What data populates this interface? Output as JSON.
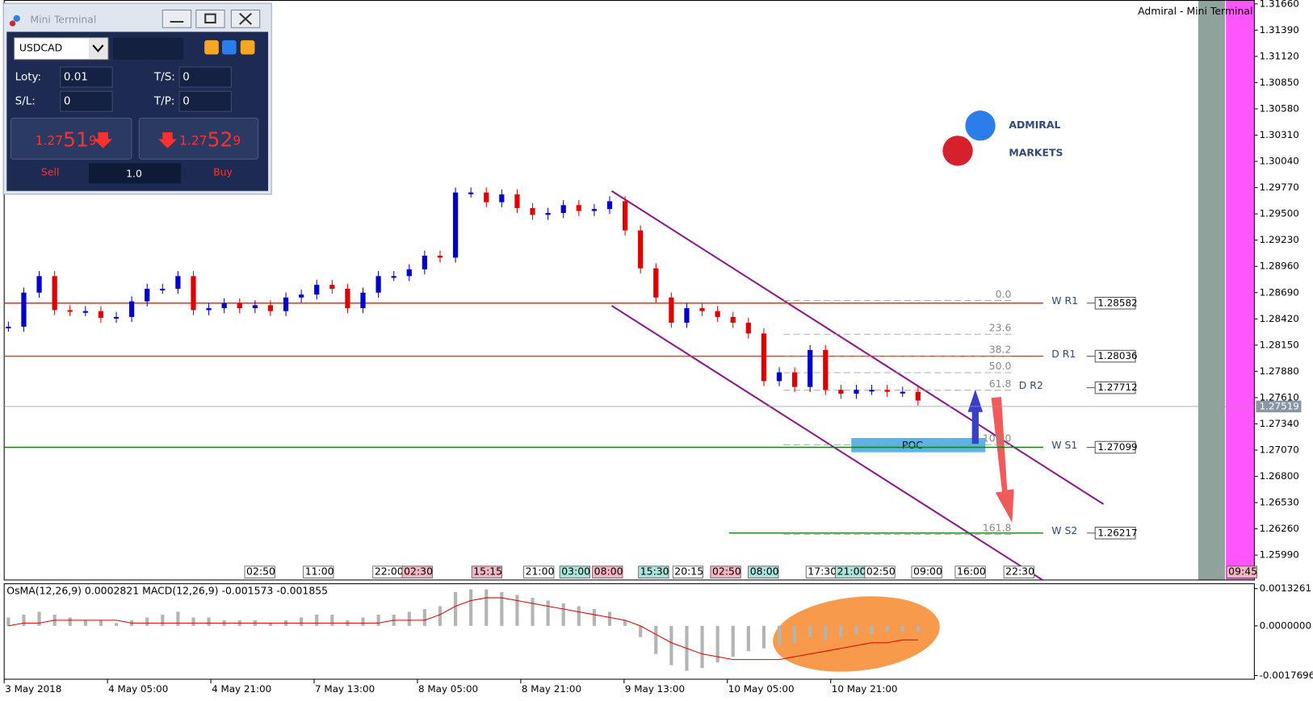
{
  "header": "Admiral - Mini Terminal",
  "logo": [
    "ADMIRAL",
    "MARKETS"
  ],
  "window": {
    "title": "Mini Terminal",
    "symbol": "USDCAD",
    "lots_label": "Loty:",
    "lots": "0.01",
    "ts_label": "T/S:",
    "ts": "0",
    "sl_label": "S/L:",
    "sl": "0",
    "tp_label": "T/P:",
    "tp": "0",
    "sell_price": {
      "big": "1.27",
      "pips": "51",
      "fraction": "9"
    },
    "buy_price": {
      "big": "1.27",
      "pips": "52",
      "fraction": "9"
    },
    "sell": "Sell",
    "volume": "1.0",
    "buy": "Buy"
  },
  "chart_data": [
    {
      "type": "candlestick",
      "x_labels": [
        "3 May 2018",
        "4 May 05:00",
        "4 May 21:00",
        "7 May 13:00",
        "8 May 05:00",
        "8 May 21:00",
        "9 May 13:00",
        "10 May 05:00",
        "10 May 21:00"
      ],
      "close": [
        1.2834,
        1.2869,
        1.2886,
        1.2851,
        1.285,
        1.285,
        1.2843,
        1.2844,
        1.286,
        1.2873,
        1.2873,
        1.2886,
        1.2851,
        1.2853,
        1.2858,
        1.2853,
        1.2856,
        1.285,
        1.2864,
        1.2867,
        1.2877,
        1.2873,
        1.2853,
        1.2869,
        1.2886,
        1.2886,
        1.2893,
        1.2907,
        1.2905,
        1.2972,
        1.2972,
        1.2962,
        1.297,
        1.2956,
        1.2949,
        1.2951,
        1.2959,
        1.2953,
        1.2955,
        1.2963,
        1.2933,
        1.2894,
        1.2864,
        1.2838,
        1.2853,
        1.285,
        1.2844,
        1.2838,
        1.2827,
        1.2778,
        1.2787,
        1.2772,
        1.281,
        1.2769,
        1.2765,
        1.2769,
        1.2769,
        1.2767,
        1.2767,
        1.2758
      ],
      "up_color": "#0000cd",
      "down_color": "#e00000",
      "ylim": [
        1.2573,
        1.317
      ],
      "yticks": [
        {
          "value": 1.3166,
          "label": "1.31660"
        },
        {
          "value": 1.3139,
          "label": "1.31390"
        },
        {
          "value": 1.3112,
          "label": "1.31120"
        },
        {
          "value": 1.3085,
          "label": "1.30850"
        },
        {
          "value": 1.3058,
          "label": "1.30580"
        },
        {
          "value": 1.3031,
          "label": "1.30310"
        },
        {
          "value": 1.3004,
          "label": "1.30040"
        },
        {
          "value": 1.2977,
          "label": "1.29770"
        },
        {
          "value": 1.295,
          "label": "1.29500"
        },
        {
          "value": 1.2923,
          "label": "1.29230"
        },
        {
          "value": 1.2896,
          "label": "1.28960"
        },
        {
          "value": 1.2869,
          "label": "1.28690"
        },
        {
          "value": 1.2842,
          "label": "1.28420"
        },
        {
          "value": 1.2815,
          "label": "1.28150"
        },
        {
          "value": 1.2788,
          "label": "1.27880"
        },
        {
          "value": 1.2761,
          "label": "1.27610"
        },
        {
          "value": 1.2734,
          "label": "1.27340"
        },
        {
          "value": 1.2707,
          "label": "1.27070"
        },
        {
          "value": 1.268,
          "label": "1.26800"
        },
        {
          "value": 1.2653,
          "label": "1.26530"
        },
        {
          "value": 1.2626,
          "label": "1.26260"
        },
        {
          "value": 1.2599,
          "label": "1.25990"
        }
      ],
      "current_price": 1.27519,
      "levels": [
        {
          "name": "W R1",
          "value": 1.28582,
          "color": "#ff2a00"
        },
        {
          "name": "D R1",
          "value": 1.28036,
          "color": "#ff2a00"
        },
        {
          "name": "D R2",
          "value": 1.27712,
          "color": "#a0a0a0"
        },
        {
          "name": "W S1",
          "value": 1.27099,
          "color": "#1a7a1a"
        },
        {
          "name": "W S2",
          "value": 1.26217,
          "color": "#1a7a1a"
        }
      ],
      "fib_labels": [
        "0.0",
        "23.6",
        "38.2",
        "50.0",
        "61.8",
        "100.0",
        "161.8"
      ],
      "poc": "POC",
      "session_labels": [
        {
          "label": "02:50",
          "color": "#ffffff"
        },
        {
          "label": "11:00",
          "color": "#ffffff"
        },
        {
          "label": "22:00",
          "color": "#ffffff"
        },
        {
          "label": "02:30",
          "color": "#f4b6c2"
        },
        {
          "label": "15:15",
          "color": "#f4b6c2"
        },
        {
          "label": "21:00",
          "color": "#ffffff"
        },
        {
          "label": "03:00",
          "color": "#a8e6dc"
        },
        {
          "label": "08:00",
          "color": "#f4b6c2"
        },
        {
          "label": "15:30",
          "color": "#a8e6dc"
        },
        {
          "label": "20:15",
          "color": "#ffffff"
        },
        {
          "label": "02:50",
          "color": "#f4b6c2"
        },
        {
          "label": "08:00",
          "color": "#a8e6dc"
        },
        {
          "label": "17:30",
          "color": "#ffffff"
        },
        {
          "label": "21:00",
          "color": "#a8e6dc"
        },
        {
          "label": "02:50",
          "color": "#ffffff"
        },
        {
          "label": "09:00",
          "color": "#ffffff"
        },
        {
          "label": "16:00",
          "color": "#ffffff"
        },
        {
          "label": "22:30",
          "color": "#ffffff"
        },
        {
          "label": "09:45",
          "color": "#f4b6c2"
        }
      ]
    },
    {
      "type": "histogram",
      "label": "OsMA(12,26,9) 0.0002821 MACD(12,26,9) -0.001573 -0.001855",
      "values": [
        0.0003,
        0.0004,
        0.0005,
        0.0004,
        0.0003,
        0.0002,
        0.0002,
        0.0001,
        0.0002,
        0.0003,
        0.0004,
        0.0005,
        0.0003,
        0.0003,
        0.0002,
        0.0002,
        0.0002,
        0.0001,
        0.0002,
        0.0003,
        0.0004,
        0.0004,
        0.0002,
        0.0003,
        0.0004,
        0.0004,
        0.0005,
        0.0006,
        0.0007,
        0.0012,
        0.0013,
        0.0013,
        0.0012,
        0.0011,
        0.001,
        0.0009,
        0.0008,
        0.0007,
        0.0006,
        0.0005,
        0.0002,
        -0.0004,
        -0.001,
        -0.0014,
        -0.0016,
        -0.0015,
        -0.0013,
        -0.0011,
        -0.0009,
        -0.0008,
        -0.0007,
        -0.0006,
        -0.0004,
        -0.0005,
        -0.0004,
        -0.0003,
        -0.0003,
        -0.0002,
        -0.0002,
        -0.0002
      ],
      "color": "#b4b4b4",
      "signal": [
        0.0,
        0.0001,
        0.0001,
        0.0002,
        0.0002,
        0.0002,
        0.0002,
        0.0002,
        0.0001,
        0.0001,
        0.0001,
        0.0001,
        0.0001,
        0.0001,
        0.0001,
        0.0001,
        0.0001,
        0.0001,
        0.0001,
        0.0001,
        0.0001,
        0.0001,
        0.0001,
        0.0001,
        0.0001,
        0.0002,
        0.0002,
        0.0002,
        0.0004,
        0.0007,
        0.0009,
        0.001,
        0.001,
        0.0009,
        0.0008,
        0.0007,
        0.0006,
        0.0005,
        0.0004,
        0.0003,
        0.0002,
        0.0,
        -0.0003,
        -0.0006,
        -0.0008,
        -0.001,
        -0.0011,
        -0.0012,
        -0.0012,
        -0.0012,
        -0.0012,
        -0.0011,
        -0.001,
        -0.0009,
        -0.0008,
        -0.0007,
        -0.0006,
        -0.0006,
        -0.0005,
        -0.0005
      ],
      "signal_color": "#e00000",
      "ylim": [
        -0.0019,
        0.0015
      ],
      "yticks": [
        {
          "value": 0.0013261,
          "label": "0.0013261"
        },
        {
          "value": 0,
          "label": "0.0000000"
        },
        {
          "value": -0.0017696,
          "label": "-0.0017696"
        }
      ]
    }
  ]
}
